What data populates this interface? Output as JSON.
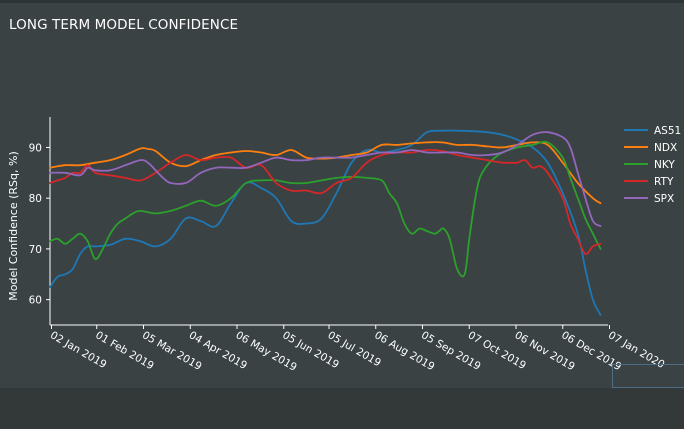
{
  "title": "LONG TERM MODEL CONFIDENCE",
  "chart_data": {
    "type": "line",
    "title": "LONG TERM MODEL CONFIDENCE",
    "ylabel": "Model Confidence (RSq, %)",
    "xlabel": "",
    "ylim": [
      55,
      96
    ],
    "xlim": [
      0,
      370
    ],
    "yticks": [
      60,
      70,
      80,
      90
    ],
    "ytick_labels": [
      "60",
      "70",
      "80",
      "90"
    ],
    "xticks": [
      1,
      31,
      62,
      93,
      124,
      155,
      185,
      216,
      247,
      278,
      309,
      340,
      371
    ],
    "xtick_labels": [
      "02 Jan 2019",
      "01 Feb 2019",
      "05 Mar 2019",
      "04 Apr 2019",
      "06 May 2019",
      "05 Jun 2019",
      "05 Jul 2019",
      "06 Aug 2019",
      "05 Sep 2019",
      "07 Oct 2019",
      "06 Nov 2019",
      "06 Dec 2019",
      "07 Jan 2020"
    ],
    "x_unit": "days since 01 Jan 2019",
    "series": [
      {
        "name": "AS51",
        "color": "#1f77b4",
        "x": [
          0,
          5,
          10,
          15,
          20,
          25,
          30,
          40,
          50,
          60,
          70,
          80,
          90,
          100,
          110,
          120,
          130,
          140,
          150,
          160,
          170,
          180,
          190,
          200,
          210,
          220,
          230,
          240,
          250,
          260,
          270,
          280,
          290,
          300,
          310,
          320,
          330,
          340,
          350,
          355,
          360,
          365
        ],
        "values": [
          62.5,
          64.5,
          65,
          66,
          69,
          70.5,
          70.5,
          70.8,
          72,
          71.5,
          70.5,
          72,
          76,
          75.5,
          74.5,
          79,
          83,
          82,
          80,
          75.5,
          75,
          76,
          81,
          87,
          89.5,
          89,
          89.5,
          90.5,
          93,
          93.3,
          93.3,
          93.2,
          93,
          92.5,
          91.5,
          90,
          87,
          81,
          73,
          66,
          60,
          57
        ]
      },
      {
        "name": "NDX",
        "color": "#ff7f0e",
        "x": [
          0,
          10,
          20,
          30,
          40,
          50,
          60,
          65,
          70,
          80,
          90,
          100,
          110,
          120,
          130,
          140,
          150,
          160,
          170,
          180,
          190,
          200,
          210,
          220,
          230,
          240,
          250,
          260,
          270,
          280,
          290,
          300,
          310,
          320,
          330,
          340,
          350,
          360,
          365
        ],
        "values": [
          86,
          86.5,
          86.5,
          87,
          87.5,
          88.5,
          89.8,
          89.7,
          89.3,
          87,
          86.3,
          87.5,
          88.5,
          89,
          89.3,
          89,
          88.5,
          89.5,
          88,
          87.8,
          88,
          88.5,
          89,
          90.5,
          90.5,
          90.8,
          91,
          91,
          90.5,
          90.5,
          90.2,
          90,
          90.5,
          91,
          90.5,
          87,
          83,
          80,
          79
        ]
      },
      {
        "name": "NKY",
        "color": "#2ca02c",
        "x": [
          0,
          5,
          10,
          15,
          20,
          25,
          30,
          35,
          40,
          45,
          50,
          55,
          60,
          70,
          80,
          90,
          100,
          110,
          120,
          130,
          140,
          150,
          160,
          170,
          180,
          190,
          200,
          210,
          220,
          225,
          230,
          235,
          240,
          245,
          250,
          255,
          258,
          261,
          265,
          270,
          275,
          278,
          282,
          285,
          290,
          295,
          300,
          310,
          320,
          330,
          340,
          345,
          350,
          355,
          360,
          365
        ],
        "values": [
          71.5,
          72,
          71,
          72,
          73,
          71.5,
          68,
          70,
          73,
          75,
          76,
          77,
          77.5,
          77,
          77.5,
          78.5,
          79.5,
          78.5,
          80,
          83,
          83.5,
          83.5,
          83,
          83,
          83.5,
          84,
          84.2,
          84,
          83.5,
          81,
          79,
          75,
          73,
          74,
          73.5,
          73,
          73.5,
          74,
          72,
          66,
          65,
          72,
          80,
          84,
          86.5,
          88,
          89,
          90,
          90.5,
          91,
          88,
          84,
          80,
          76,
          73,
          70
        ]
      },
      {
        "name": "RTY",
        "color": "#d62728",
        "x": [
          0,
          5,
          10,
          15,
          20,
          25,
          30,
          40,
          50,
          60,
          70,
          80,
          90,
          100,
          110,
          120,
          130,
          140,
          150,
          160,
          170,
          180,
          190,
          200,
          210,
          220,
          230,
          240,
          250,
          260,
          270,
          280,
          290,
          300,
          305,
          310,
          315,
          320,
          325,
          330,
          340,
          345,
          350,
          355,
          360,
          365
        ],
        "values": [
          83,
          83.5,
          84,
          85,
          85,
          86.5,
          85,
          84.5,
          84,
          83.5,
          85,
          87,
          88.5,
          87.5,
          88,
          88,
          86,
          86.5,
          83,
          81.5,
          81.5,
          81,
          83,
          84,
          87,
          88.5,
          89,
          89,
          89.5,
          89.3,
          88.5,
          88,
          87.5,
          87,
          87,
          87,
          87.5,
          86,
          86.3,
          85,
          80,
          75,
          72,
          69,
          70.5,
          71
        ]
      },
      {
        "name": "SPX",
        "color": "#9467bd",
        "x": [
          0,
          10,
          20,
          25,
          30,
          40,
          50,
          60,
          65,
          70,
          75,
          80,
          90,
          100,
          110,
          120,
          130,
          140,
          150,
          160,
          170,
          180,
          190,
          200,
          210,
          220,
          230,
          240,
          250,
          260,
          270,
          280,
          290,
          300,
          310,
          320,
          330,
          340,
          345,
          350,
          355,
          360,
          365
        ],
        "values": [
          85,
          85,
          84.5,
          86,
          85.5,
          85.5,
          86.5,
          87.5,
          87,
          85.5,
          84,
          83,
          83,
          85,
          86,
          86,
          86,
          87,
          88,
          87.5,
          87.5,
          88,
          88,
          88,
          88.5,
          89,
          89,
          89.5,
          89,
          89,
          89,
          88.5,
          88.5,
          89,
          90.5,
          92.5,
          93,
          92,
          90,
          85,
          80,
          75.5,
          74.5
        ]
      }
    ],
    "legend": [
      "AS51",
      "NDX",
      "NKY",
      "RTY",
      "SPX"
    ],
    "legend_position": "right",
    "grid": false
  }
}
